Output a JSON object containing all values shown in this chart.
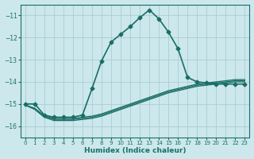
{
  "xlabel": "Humidex (Indice chaleur)",
  "ylabel": "",
  "background_color": "#cce8ec",
  "grid_color": "#aacdd4",
  "line_color": "#1a6e65",
  "xlim": [
    -0.5,
    23.5
  ],
  "ylim": [
    -16.5,
    -10.5
  ],
  "yticks": [
    -16,
    -15,
    -14,
    -13,
    -12,
    -11
  ],
  "xticks": [
    0,
    1,
    2,
    3,
    4,
    5,
    6,
    7,
    8,
    9,
    10,
    11,
    12,
    13,
    14,
    15,
    16,
    17,
    18,
    19,
    20,
    21,
    22,
    23
  ],
  "series": [
    {
      "x": [
        0,
        1,
        2,
        3,
        4,
        5,
        6,
        7,
        8,
        9,
        10,
        11,
        12,
        13,
        14,
        15,
        16,
        17,
        18,
        19,
        20,
        21,
        22,
        23
      ],
      "y": [
        -15.0,
        -15.0,
        -15.5,
        -15.6,
        -15.6,
        -15.6,
        -15.5,
        -14.3,
        -13.05,
        -12.2,
        -11.85,
        -11.5,
        -11.1,
        -10.75,
        -11.15,
        -11.75,
        -12.5,
        -13.8,
        -14.0,
        -14.05,
        -14.1,
        -14.1,
        -14.1,
        -14.1
      ],
      "marker": "D",
      "markersize": 2.5,
      "linewidth": 1.2
    },
    {
      "x": [
        0,
        1,
        2,
        3,
        4,
        5,
        6,
        7,
        8,
        9,
        10,
        11,
        12,
        13,
        14,
        15,
        16,
        17,
        18,
        19,
        20,
        21,
        22,
        23
      ],
      "y": [
        -15.05,
        -15.2,
        -15.55,
        -15.65,
        -15.65,
        -15.65,
        -15.6,
        -15.55,
        -15.45,
        -15.3,
        -15.15,
        -15.0,
        -14.85,
        -14.7,
        -14.55,
        -14.4,
        -14.3,
        -14.2,
        -14.1,
        -14.05,
        -14.0,
        -13.95,
        -13.9,
        -13.9
      ],
      "marker": null,
      "markersize": 0,
      "linewidth": 0.9
    },
    {
      "x": [
        0,
        1,
        2,
        3,
        4,
        5,
        6,
        7,
        8,
        9,
        10,
        11,
        12,
        13,
        14,
        15,
        16,
        17,
        18,
        19,
        20,
        21,
        22,
        23
      ],
      "y": [
        -15.05,
        -15.2,
        -15.55,
        -15.7,
        -15.7,
        -15.7,
        -15.65,
        -15.6,
        -15.5,
        -15.35,
        -15.2,
        -15.05,
        -14.9,
        -14.75,
        -14.6,
        -14.45,
        -14.35,
        -14.25,
        -14.15,
        -14.1,
        -14.05,
        -14.0,
        -13.95,
        -13.95
      ],
      "marker": null,
      "markersize": 0,
      "linewidth": 0.9
    },
    {
      "x": [
        0,
        1,
        2,
        3,
        4,
        5,
        6,
        7,
        8,
        9,
        10,
        11,
        12,
        13,
        14,
        15,
        16,
        17,
        18,
        19,
        20,
        21,
        22,
        23
      ],
      "y": [
        -15.05,
        -15.25,
        -15.6,
        -15.75,
        -15.75,
        -15.75,
        -15.7,
        -15.65,
        -15.55,
        -15.4,
        -15.25,
        -15.1,
        -14.95,
        -14.8,
        -14.65,
        -14.5,
        -14.4,
        -14.3,
        -14.2,
        -14.15,
        -14.1,
        -14.05,
        -14.0,
        -14.0
      ],
      "marker": null,
      "markersize": 0,
      "linewidth": 0.9
    }
  ]
}
